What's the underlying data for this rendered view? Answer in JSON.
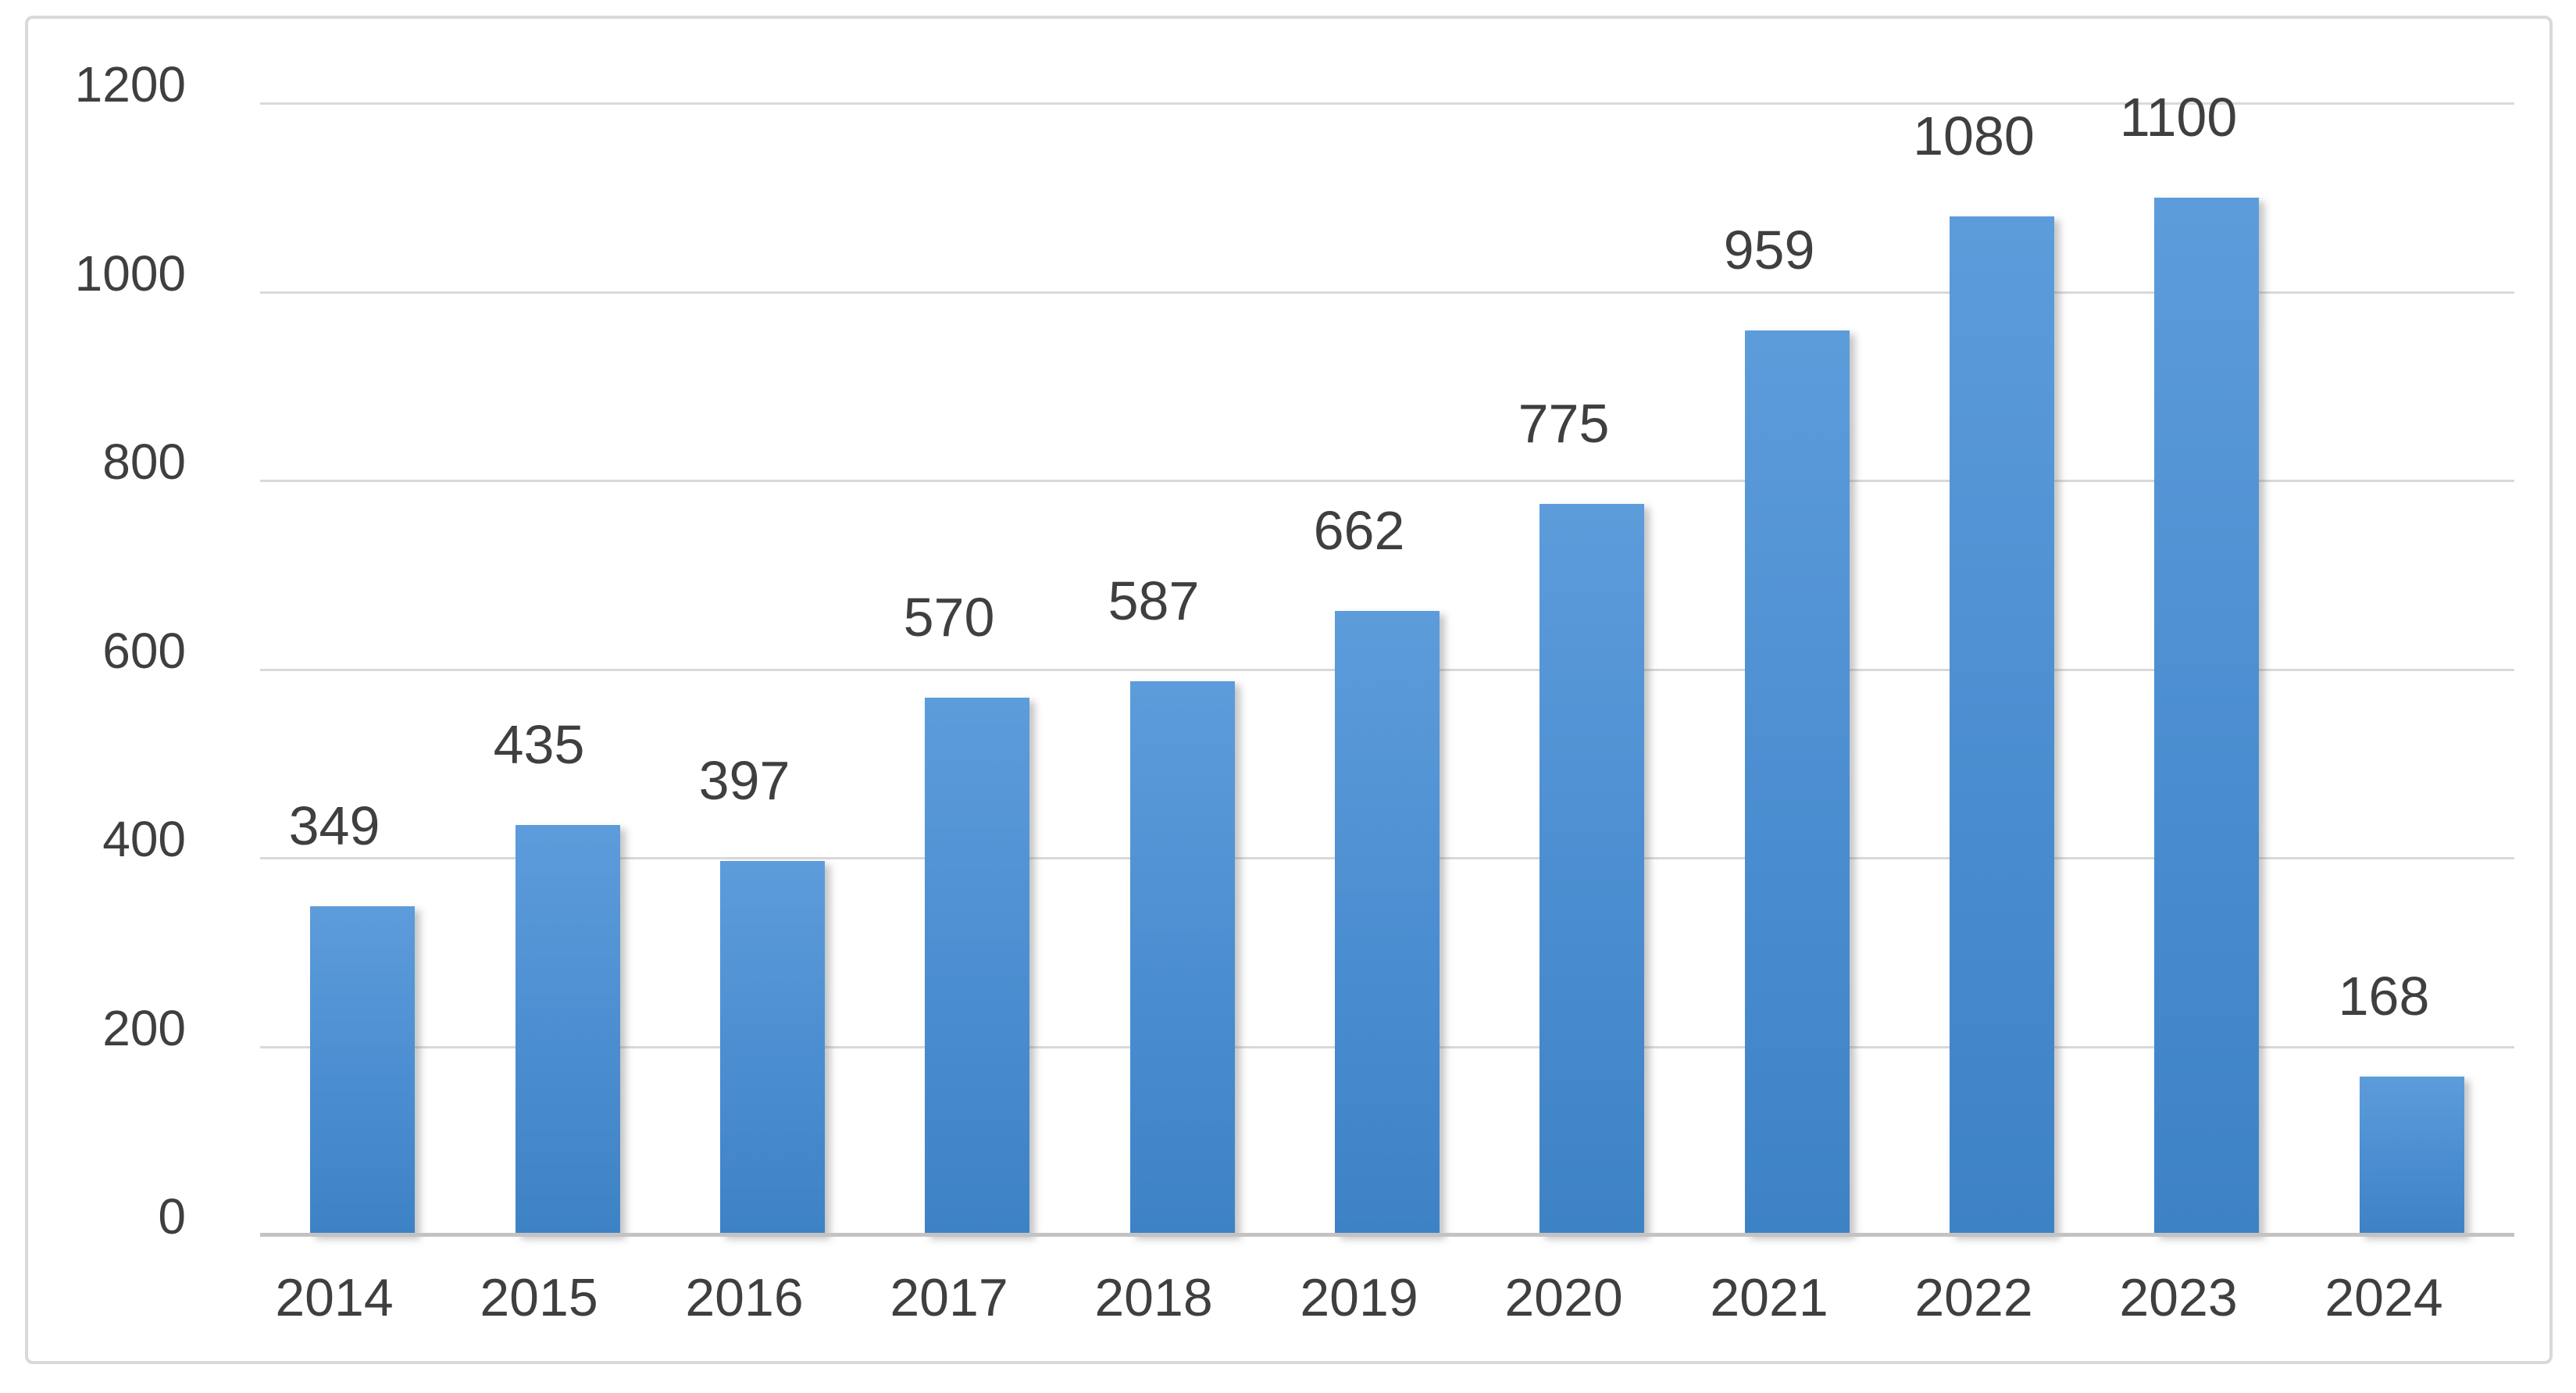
{
  "chart_data": {
    "type": "bar",
    "title": "",
    "xlabel": "",
    "ylabel": "",
    "categories": [
      "2014",
      "2015",
      "2016",
      "2017",
      "2018",
      "2019",
      "2020",
      "2021",
      "2022",
      "2023",
      "2024"
    ],
    "values": [
      349,
      435,
      397,
      570,
      587,
      662,
      775,
      959,
      1080,
      1100,
      168
    ],
    "data_labels": [
      "349",
      "435",
      "397",
      "570",
      "587",
      "662",
      "775",
      "959",
      "1080",
      "1100",
      "168"
    ],
    "ylim": [
      0,
      1200
    ],
    "yticks": [
      "0",
      "200",
      "400",
      "600",
      "800",
      "1000",
      "1200"
    ],
    "ytick_values": [
      0,
      200,
      400,
      600,
      800,
      1000,
      1200
    ],
    "grid": true,
    "legend": null,
    "data_labels_shown": true
  },
  "colors": {
    "bar_gradient_top": "#5D9CDB",
    "bar_gradient_bottom": "#3E82C6",
    "gridline": "#D9D9D9",
    "axis_line": "#C3C3C3",
    "frame_border": "#D9D9D9",
    "label_text": "#3F3F3F",
    "background": "#FFFFFF"
  }
}
